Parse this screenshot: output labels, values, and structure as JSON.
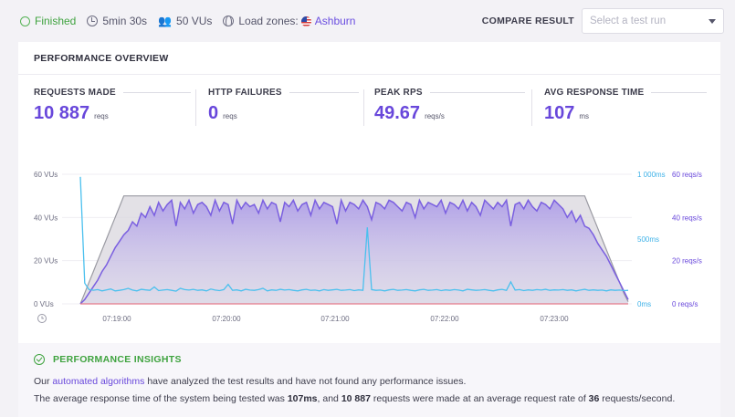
{
  "topbar": {
    "status": "Finished",
    "duration": "5min 30s",
    "vus": "50 VUs",
    "load_zones_label": "Load zones:",
    "load_zone": "Ashburn",
    "compare_label": "COMPARE RESULT",
    "compare_placeholder": "Select a test run"
  },
  "overview": {
    "title": "PERFORMANCE OVERVIEW",
    "stats": [
      {
        "label": "REQUESTS MADE",
        "value": "10 887",
        "unit": "reqs"
      },
      {
        "label": "HTTP FAILURES",
        "value": "0",
        "unit": "reqs"
      },
      {
        "label": "PEAK RPS",
        "value": "49.67",
        "unit": "reqs/s"
      },
      {
        "label": "AVG RESPONSE TIME",
        "value": "107",
        "unit": "ms"
      }
    ]
  },
  "chart_data": {
    "type": "line",
    "x_ticks": [
      "07:19:00",
      "07:20:00",
      "07:21:00",
      "07:22:00",
      "07:23:00"
    ],
    "y_left": {
      "ticks": [
        "0 VUs",
        "20 VUs",
        "40 VUs",
        "60 VUs"
      ],
      "range": [
        0,
        60
      ]
    },
    "y_right_ms": {
      "ticks": [
        "0ms",
        "500ms",
        "1 000ms"
      ],
      "range": [
        0,
        1000
      ]
    },
    "y_right_rps": {
      "ticks": [
        "0 reqs/s",
        "20 reqs/s",
        "40 reqs/s",
        "60 reqs/s"
      ],
      "range": [
        0,
        60
      ]
    },
    "colors": {
      "vus": "#9a9aa2",
      "rps": "#7a5fe0",
      "response": "#4bc0ee",
      "failures": "#e57a8a"
    },
    "vus": [
      0,
      5,
      10,
      15,
      20,
      25,
      30,
      35,
      40,
      45,
      50,
      50,
      50,
      50,
      50,
      50,
      50,
      50,
      50,
      50,
      50,
      50,
      50,
      50,
      50,
      50,
      50,
      50,
      50,
      50,
      50,
      50,
      50,
      50,
      50,
      50,
      50,
      50,
      50,
      50,
      50,
      50,
      50,
      50,
      50,
      50,
      50,
      50,
      50,
      50,
      50,
      50,
      50,
      50,
      50,
      50,
      50,
      50,
      50,
      50,
      50,
      50,
      50,
      50,
      50,
      50,
      50,
      50,
      50,
      50,
      50,
      50,
      50,
      50,
      50,
      50,
      50,
      50,
      50,
      50,
      50,
      50,
      50,
      50,
      50,
      50,
      50,
      50,
      50,
      50,
      50,
      50,
      50,
      50,
      50,
      50,
      50,
      50,
      50,
      50,
      50,
      50,
      50,
      50,
      50,
      50,
      50,
      50,
      50,
      50,
      50,
      50,
      50,
      50,
      50,
      50,
      50,
      45,
      40,
      35,
      30,
      25,
      20,
      15,
      10,
      5,
      1
    ],
    "rps": [
      0,
      2,
      5,
      8,
      11,
      15,
      18,
      22,
      26,
      29,
      32,
      34,
      38,
      36,
      42,
      40,
      45,
      41,
      47,
      43,
      46,
      48,
      36,
      47,
      44,
      48,
      42,
      46,
      47,
      45,
      41,
      48,
      43,
      47,
      46,
      37,
      48,
      44,
      47,
      45,
      46,
      42,
      48,
      44,
      47,
      46,
      38,
      47,
      45,
      48,
      43,
      46,
      47,
      41,
      48,
      44,
      47,
      46,
      45,
      37,
      48,
      43,
      47,
      46,
      44,
      48,
      45,
      39,
      47,
      46,
      44,
      48,
      47,
      45,
      43,
      47,
      46,
      40,
      48,
      44,
      47,
      46,
      45,
      48,
      42,
      47,
      46,
      44,
      48,
      43,
      47,
      45,
      41,
      48,
      46,
      44,
      47,
      45,
      48,
      36,
      46,
      47,
      44,
      48,
      45,
      43,
      47,
      46,
      44,
      48,
      46,
      44,
      40,
      43,
      38,
      41,
      36,
      35,
      32,
      28,
      25,
      22,
      18,
      14,
      10,
      6,
      2
    ],
    "response_ms": [
      980,
      160,
      110,
      105,
      110,
      100,
      108,
      115,
      100,
      104,
      110,
      120,
      106,
      100,
      112,
      108,
      104,
      130,
      102,
      106,
      110,
      104,
      98,
      120,
      110,
      106,
      112,
      104,
      108,
      100,
      114,
      106,
      102,
      110,
      150,
      104,
      108,
      100,
      112,
      106,
      104,
      110,
      120,
      100,
      108,
      104,
      112,
      106,
      110,
      104,
      100,
      108,
      112,
      104,
      106,
      100,
      110,
      104,
      108,
      112,
      104,
      106,
      110,
      102,
      108,
      104,
      590,
      110,
      104,
      106,
      100,
      108,
      112,
      104,
      106,
      110,
      104,
      100,
      108,
      112,
      104,
      106,
      110,
      102,
      108,
      104,
      110,
      106,
      100,
      112,
      108,
      104,
      106,
      110,
      104,
      100,
      108,
      112,
      104,
      170,
      106,
      110,
      102,
      108,
      104,
      110,
      106,
      112,
      104,
      108,
      106,
      110,
      104,
      108,
      100,
      106,
      112,
      104,
      108,
      104,
      106,
      100,
      108,
      104,
      106,
      102,
      104
    ],
    "failures": 0
  },
  "insights": {
    "title": "PERFORMANCE INSIGHTS",
    "line1_prefix": "Our ",
    "line1_link": "automated algorithms",
    "line1_suffix": " have analyzed the test results and have not found any performance issues.",
    "line2_a": "The average response time of the system being tested was ",
    "line2_b": "107ms",
    "line2_c": ", and ",
    "line2_d": "10 887",
    "line2_e": " requests were made at an average request rate of ",
    "line2_f": "36",
    "line2_g": " requests/second."
  }
}
